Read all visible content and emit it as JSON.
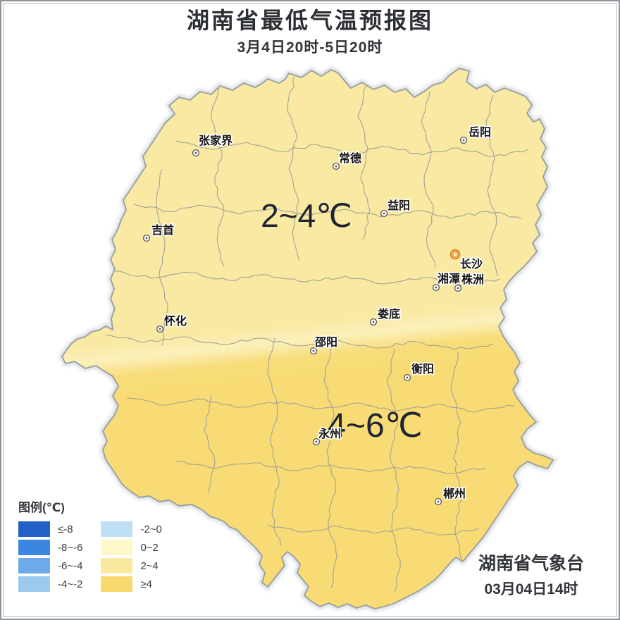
{
  "title": {
    "main": "湖南省最低气温预报图",
    "subtitle": "3月4日20时-5日20时"
  },
  "map": {
    "zone_labels": [
      {
        "text": "2~4℃"
      },
      {
        "text": "4~6℃"
      }
    ],
    "cities": [
      {
        "id": "zhangjiajie",
        "name": "张家界"
      },
      {
        "id": "changde",
        "name": "常德"
      },
      {
        "id": "yueyang",
        "name": "岳阳"
      },
      {
        "id": "jishou",
        "name": "吉首"
      },
      {
        "id": "yiyang",
        "name": "益阳"
      },
      {
        "id": "changsha",
        "name": "长沙",
        "capital": true
      },
      {
        "id": "xiangtan",
        "name": "湘潭"
      },
      {
        "id": "zhuzhou",
        "name": "株洲"
      },
      {
        "id": "huaihua",
        "name": "怀化"
      },
      {
        "id": "loudi",
        "name": "娄底"
      },
      {
        "id": "shaoyang",
        "name": "邵阳"
      },
      {
        "id": "hengyang",
        "name": "衡阳"
      },
      {
        "id": "yongzhou",
        "name": "永州"
      },
      {
        "id": "chenzhou",
        "name": "郴州"
      }
    ],
    "fill_north": "#f9e9a2",
    "fill_transition": "#fbf0bb",
    "fill_south": "#f8db74",
    "boundary_color": "#9aa0a2",
    "county_line_color": "#a3a299",
    "capital_marker_color": "#f6a94f"
  },
  "legend": {
    "title": "图例(℃)",
    "items": [
      {
        "range": "≤-8",
        "color": "#2161c6"
      },
      {
        "range": "-8~-6",
        "color": "#3a87e2"
      },
      {
        "range": "-6~-4",
        "color": "#6caae9"
      },
      {
        "range": "-4~-2",
        "color": "#9cc9ee"
      },
      {
        "range": "-2~0",
        "color": "#bedff4"
      },
      {
        "range": "0~2",
        "color": "#fdf7c9"
      },
      {
        "range": "2~4",
        "color": "#fbe9a0"
      },
      {
        "range": "≥4",
        "color": "#f8d96e"
      }
    ]
  },
  "credit": {
    "agency": "湖南省气象台",
    "issued": "03月04日14时"
  }
}
